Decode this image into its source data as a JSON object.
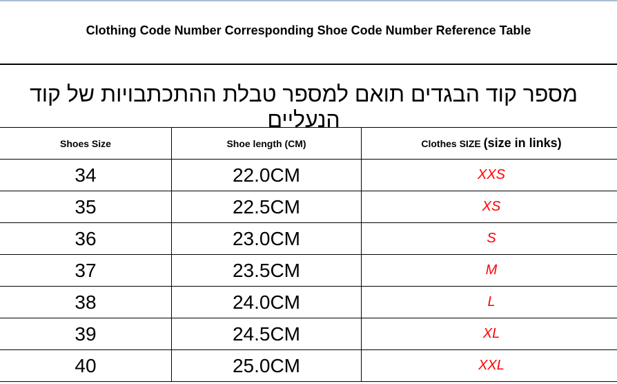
{
  "title": "Clothing Code Number Corresponding Shoe Code Number Reference Table",
  "hebrew_title": "מספר קוד הבגדים תואם למספר טבלת ההתכתבויות של קוד הנעליים",
  "headers": {
    "shoes_size": "Shoes Size",
    "shoe_length": "Shoe length (CM)",
    "clothes_size": "Clothes SIZE",
    "clothes_size_note": "(size in links)"
  },
  "rows": [
    {
      "shoes_size": "34",
      "length": "22.0CM",
      "clothes": "XXS"
    },
    {
      "shoes_size": "35",
      "length": "22.5CM",
      "clothes": "XS"
    },
    {
      "shoes_size": "36",
      "length": "23.0CM",
      "clothes": "S"
    },
    {
      "shoes_size": "37",
      "length": "23.5CM",
      "clothes": "M"
    },
    {
      "shoes_size": "38",
      "length": "24.0CM",
      "clothes": "L"
    },
    {
      "shoes_size": "39",
      "length": "24.5CM",
      "clothes": "XL"
    },
    {
      "shoes_size": "40",
      "length": "25.0CM",
      "clothes": "XXL"
    }
  ],
  "colors": {
    "clothes_size_text": "#ff0000"
  }
}
